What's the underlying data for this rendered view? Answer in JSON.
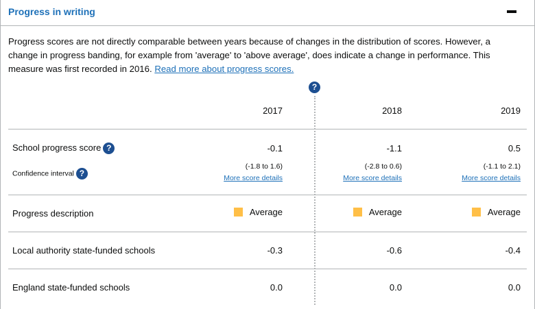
{
  "title": "Progress in writing",
  "intro": {
    "text": "Progress scores are not directly comparable between years because of changes in the distribution of scores. However, a change in progress banding, for example from 'average' to 'above average', does indicate a change in performance. This measure was first recorded in 2016.",
    "link": "Read more about progress scores."
  },
  "help_glyph": "?",
  "years": [
    "2017",
    "2018",
    "2019"
  ],
  "rows": {
    "school_progress": {
      "label": "School progress score",
      "values": [
        "-0.1",
        "-1.1",
        "0.5"
      ]
    },
    "confidence": {
      "label": "Confidence interval",
      "values": [
        "(-1.8 to 1.6)",
        "(-2.8 to 0.6)",
        "(-1.1 to 2.1)"
      ],
      "link": "More score details"
    },
    "description": {
      "label": "Progress description",
      "values": [
        "Average",
        "Average",
        "Average"
      ],
      "color": "#ffbf47"
    },
    "local_authority": {
      "label": "Local authority state-funded schools",
      "values": [
        "-0.3",
        "-0.6",
        "-0.4"
      ]
    },
    "england": {
      "label": "England state-funded schools",
      "values": [
        "0.0",
        "0.0",
        "0.0"
      ]
    }
  },
  "colors": {
    "link": "#1d70b8",
    "help_icon": "#1d4f91",
    "band_average": "#ffbf47"
  }
}
